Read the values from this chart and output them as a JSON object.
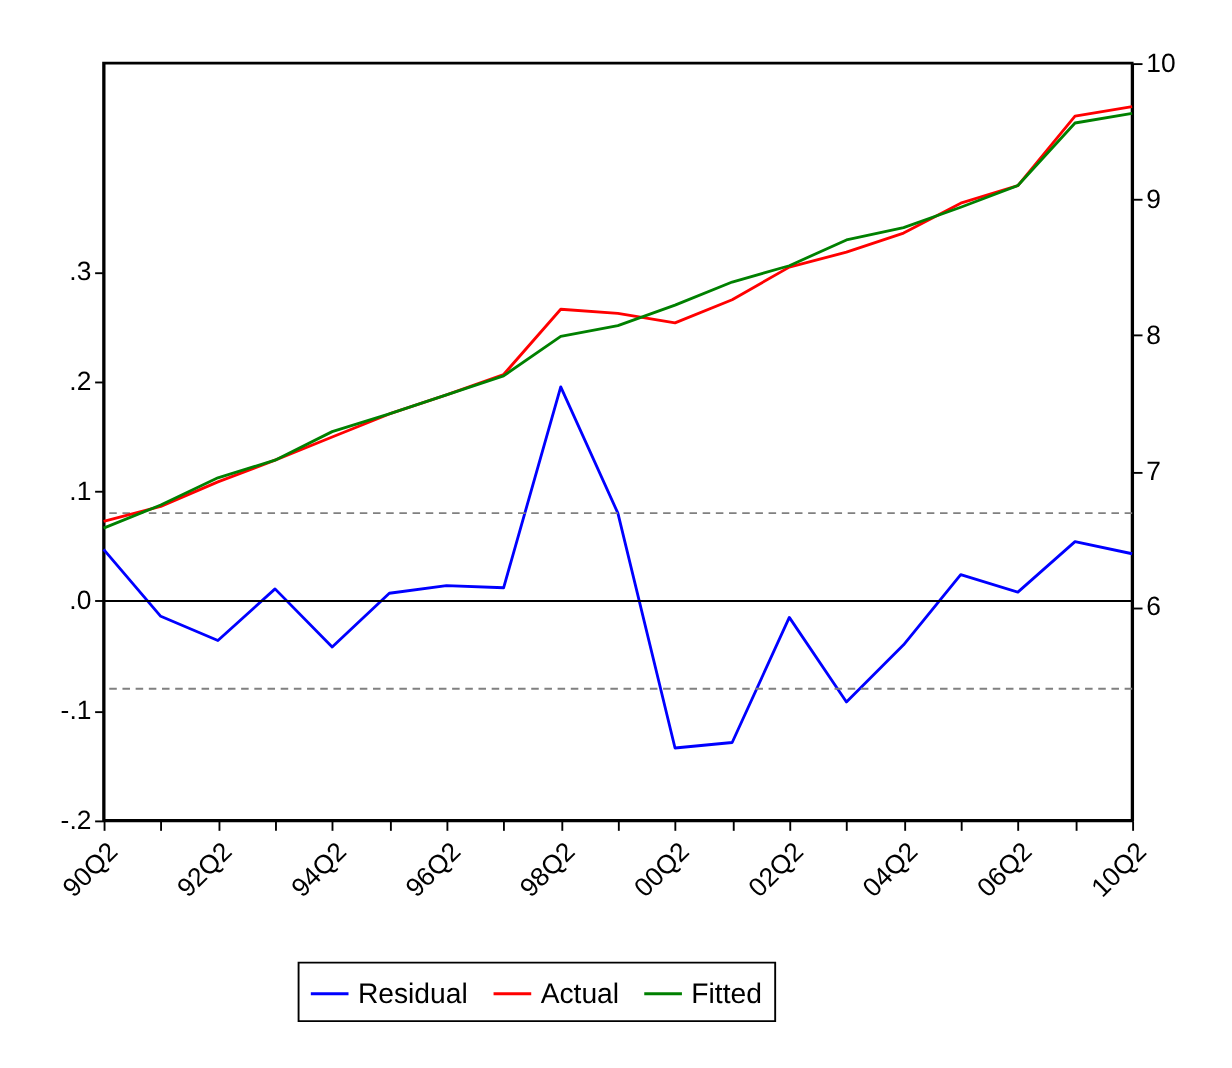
{
  "chart_data": {
    "type": "line",
    "categories": [
      "90Q2",
      null,
      "92Q2",
      null,
      "94Q2",
      null,
      "96Q2",
      null,
      "98Q2",
      null,
      "00Q2",
      null,
      "02Q2",
      null,
      "04Q2",
      null,
      "06Q2",
      null,
      "10Q2"
    ],
    "series": [
      {
        "name": "Residual",
        "color": "#0000ff",
        "values": [
          0.047,
          -0.014,
          -0.036,
          0.011,
          -0.042,
          0.007,
          0.014,
          0.012,
          0.195,
          0.08,
          -0.134,
          -0.129,
          -0.015,
          -0.092,
          -0.04,
          0.024,
          0.008,
          0.054,
          0.043
        ]
      },
      {
        "name": "Actual",
        "color": "#ff0000",
        "axis": "y2",
        "values": [
          6.63,
          6.74,
          6.92,
          7.08,
          7.25,
          7.42,
          7.56,
          7.71,
          8.19,
          8.16,
          8.09,
          8.26,
          8.5,
          8.61,
          8.75,
          8.97,
          9.1,
          9.61,
          9.68
        ]
      },
      {
        "name": "Fitted",
        "color": "#008000",
        "axis": "y2",
        "values": [
          6.58,
          6.75,
          6.95,
          7.08,
          7.29,
          7.42,
          7.56,
          7.7,
          7.99,
          8.07,
          8.22,
          8.39,
          8.51,
          8.7,
          8.79,
          8.94,
          9.1,
          9.56,
          9.63
        ]
      }
    ],
    "ylim": [
      -0.2,
      0.49
    ],
    "yticks": [
      {
        "value": -0.2,
        "label": "-.2"
      },
      {
        "value": -0.1,
        "label": "-.1"
      },
      {
        "value": 0,
        "label": ".0"
      },
      {
        "value": 0.1,
        "label": ".1"
      },
      {
        "value": 0.2,
        "label": ".2"
      },
      {
        "value": 0.3,
        "label": ".3"
      }
    ],
    "y2lim": [
      4.43,
      10
    ],
    "y2ticks": [
      6,
      7,
      8,
      9,
      10
    ],
    "ref_lines": [
      {
        "axis": "y",
        "value": 0,
        "color": "#000000",
        "line_style": "solid"
      },
      {
        "axis": "y",
        "value": 0.08,
        "color": "#808080",
        "line_style": "dashed"
      },
      {
        "axis": "y",
        "value": -0.08,
        "color": "#808080",
        "line_style": "dashed"
      }
    ],
    "grid": false,
    "legend": "bottom",
    "marker": "none",
    "line_style": "solid"
  }
}
